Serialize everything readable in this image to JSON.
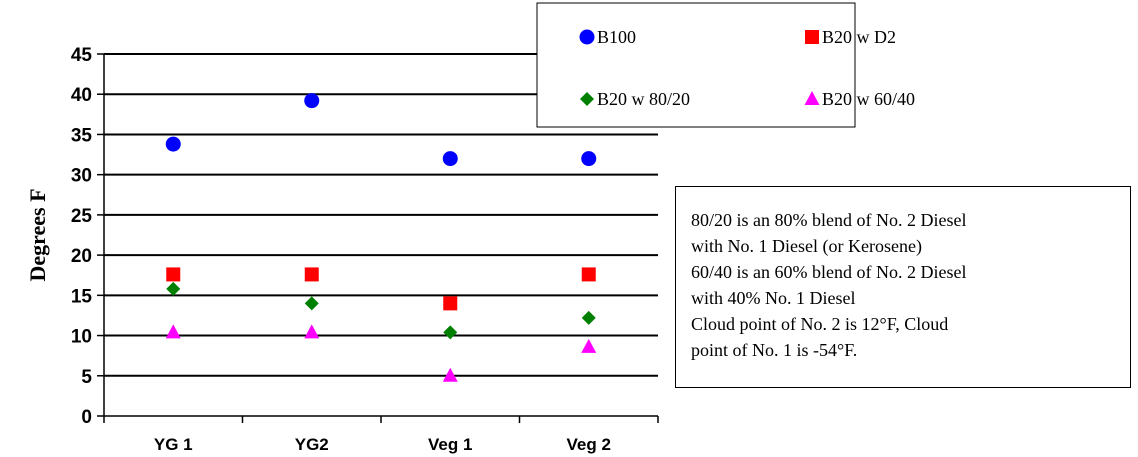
{
  "chart_data": {
    "type": "scatter",
    "title": "",
    "xlabel": "",
    "ylabel": "Degrees F",
    "categories": [
      "YG 1",
      "YG2",
      "Veg 1",
      "Veg 2"
    ],
    "ylim": [
      0,
      45
    ],
    "yticks": [
      0,
      5,
      10,
      15,
      20,
      25,
      30,
      35,
      40,
      45
    ],
    "grid": true,
    "legend_position": "top-right",
    "series": [
      {
        "name": "B100",
        "marker": "circle",
        "color": "#0000FF",
        "values": [
          33.8,
          39.2,
          32,
          32
        ]
      },
      {
        "name": "B20 w D2",
        "marker": "square",
        "color": "#FF0000",
        "values": [
          17.6,
          17.6,
          14,
          17.6
        ]
      },
      {
        "name": "B20 w 80/20",
        "marker": "diamond",
        "color": "#008000",
        "values": [
          15.8,
          14,
          10.4,
          12.2
        ]
      },
      {
        "name": "B20 w 60/40",
        "marker": "triangle",
        "color": "#FF00FF",
        "values": [
          10.4,
          10.4,
          5,
          8.6
        ]
      }
    ],
    "annotation": {
      "lines": [
        "80/20 is an 80% blend of No. 2 Diesel",
        "with No. 1 Diesel (or Kerosene)",
        "60/40 is an 60% blend of No. 2 Diesel",
        "with 40% No. 1 Diesel",
        "Cloud point of No. 2 is 12°F, Cloud",
        "point of No. 1 is -54°F."
      ]
    }
  }
}
